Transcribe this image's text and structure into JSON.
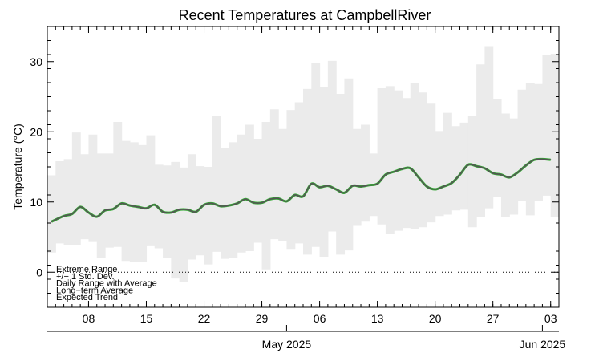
{
  "chart_data": {
    "type": "line",
    "title": "Recent Temperatures at CampbellRiver",
    "ylabel": "Temperature (°C)",
    "xlabel": "",
    "ylim": [
      -5,
      35
    ],
    "yticks": [
      0,
      10,
      20,
      30
    ],
    "xlim": [
      3.0,
      65.0
    ],
    "x_ticks": [
      {
        "x": 8,
        "label": "08"
      },
      {
        "x": 15,
        "label": "15"
      },
      {
        "x": 22,
        "label": "22"
      },
      {
        "x": 29,
        "label": "29"
      },
      {
        "x": 36,
        "label": "06"
      },
      {
        "x": 43,
        "label": "13"
      },
      {
        "x": 50,
        "label": "20"
      },
      {
        "x": 57,
        "label": "27"
      },
      {
        "x": 64,
        "label": "03"
      }
    ],
    "month_ticks": [
      {
        "x": 32,
        "label": "May 2025"
      },
      {
        "x": 63,
        "label": "Jun 2025"
      }
    ],
    "extreme_range": {
      "start_x": 3.0,
      "high": [
        13.8,
        15.8,
        16.1,
        19.9,
        16.8,
        19.6,
        16.9,
        16.9,
        21.4,
        18.7,
        18.5,
        18.1,
        19.5,
        15.3,
        15.2,
        15.7,
        14.9,
        16.8,
        15.1,
        15.0,
        22.2,
        17.7,
        18.5,
        19.6,
        21.0,
        19.0,
        21.4,
        23.2,
        20.4,
        23.1,
        24.2,
        26.1,
        29.8,
        26.4,
        30.1,
        25.4,
        27.6,
        20.4,
        21.0,
        16.9,
        26.2,
        26.5,
        25.9,
        24.8,
        27.0,
        25.6,
        24.0,
        20.1,
        22.7,
        20.8,
        21.3,
        22.2,
        29.6,
        32.2,
        24.6,
        22.6,
        21.9,
        26.0,
        26.9,
        26.8,
        30.9,
        31.1
      ],
      "low": [
        2.8,
        4.1,
        3.9,
        3.8,
        4.7,
        4.3,
        2.0,
        3.5,
        3.6,
        1.6,
        1.4,
        1.4,
        3.7,
        3.4,
        2.0,
        -0.9,
        -1.4,
        1.8,
        2.4,
        1.1,
        2.9,
        1.9,
        2.0,
        2.8,
        3.0,
        4.2,
        0.4,
        4.7,
        4.4,
        3.2,
        4.1,
        2.5,
        3.6,
        2.2,
        5.8,
        2.5,
        3.1,
        6.6,
        7.2,
        8.0,
        6.8,
        5.4,
        5.9,
        6.3,
        6.2,
        6.4,
        7.1,
        8.0,
        8.2,
        8.8,
        8.9,
        6.4,
        7.9,
        9.1,
        10.7,
        7.8,
        8.2,
        10.1,
        8.1,
        10.2,
        10.9,
        7.8
      ]
    },
    "expected_trend": {
      "x": [
        3.5,
        5,
        6,
        7,
        8,
        9,
        10,
        11,
        12,
        13,
        14,
        15,
        16,
        17,
        18,
        19,
        20,
        21,
        22,
        23,
        24,
        25,
        26,
        27,
        28,
        29,
        30,
        31,
        32,
        33,
        34,
        35,
        36,
        37,
        38,
        39,
        40,
        41,
        42,
        43,
        44,
        45,
        46,
        47,
        48,
        49,
        50,
        51,
        52,
        53,
        54,
        55,
        56,
        57,
        58,
        59,
        60,
        61,
        62,
        63,
        64
      ],
      "values": [
        7.2,
        8.0,
        8.3,
        9.3,
        8.5,
        7.9,
        8.8,
        9.0,
        9.8,
        9.5,
        9.3,
        9.1,
        9.6,
        8.6,
        8.5,
        8.9,
        8.9,
        8.6,
        9.6,
        9.8,
        9.4,
        9.5,
        9.8,
        10.4,
        9.9,
        9.9,
        10.4,
        10.5,
        10.1,
        11.0,
        10.8,
        12.6,
        12.1,
        12.3,
        11.8,
        11.3,
        12.3,
        12.2,
        12.4,
        12.6,
        13.9,
        14.3,
        14.7,
        14.8,
        13.5,
        12.2,
        11.8,
        12.2,
        12.7,
        13.9,
        15.3,
        15.1,
        14.8,
        14.1,
        13.9,
        13.5,
        14.2,
        15.2,
        16.0,
        16.1,
        16.0
      ]
    },
    "zero_line": {
      "value": 0,
      "style": "dotted"
    },
    "legend": {
      "placement": "bottom-left",
      "entries": [
        {
          "label": "Extreme Range",
          "color": "#808080"
        },
        {
          "label": "+/− 1 Std. Dev.",
          "color": "#cc0000"
        },
        {
          "label": "Daily Range with Average",
          "color": "#ff7f00"
        },
        {
          "label": "Long−term Average",
          "color": "#22cc22"
        },
        {
          "label": "Expected Trend",
          "color": "#000000"
        }
      ]
    },
    "colors": {
      "extreme_fill": "#ebebeb",
      "average_line": "#33aa33",
      "trend_line": "#555555",
      "axis": "#000000"
    }
  }
}
